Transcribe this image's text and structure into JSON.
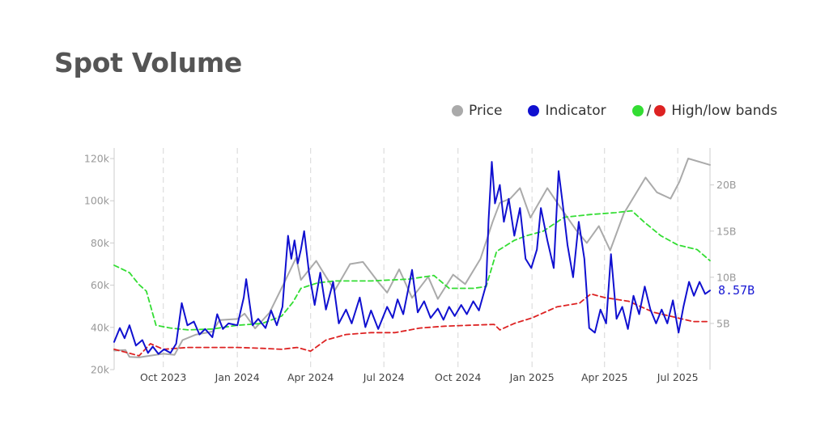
{
  "title": "Spot Volume",
  "legend": {
    "price_label": "Price",
    "indicator_label": "Indicator",
    "bands_label": "High/low bands",
    "bands_sep": "/"
  },
  "colors": {
    "price": "#aaaaaa",
    "indicator": "#1010d0",
    "high_band": "#33dd33",
    "low_band": "#dd2222",
    "grid": "#dddddd",
    "axis": "#cccccc"
  },
  "chart_data": {
    "type": "line",
    "x_range": [
      "2023-08-01",
      "2025-08-10"
    ],
    "x_ticks": [
      {
        "date": "2023-10-01",
        "label": "Oct 2023"
      },
      {
        "date": "2024-01-01",
        "label": "Jan 2024"
      },
      {
        "date": "2024-04-01",
        "label": "Apr 2024"
      },
      {
        "date": "2024-07-01",
        "label": "Jul 2024"
      },
      {
        "date": "2024-10-01",
        "label": "Oct 2024"
      },
      {
        "date": "2025-01-01",
        "label": "Jan 2025"
      },
      {
        "date": "2025-04-01",
        "label": "Apr 2025"
      },
      {
        "date": "2025-07-01",
        "label": "Jul 2025"
      }
    ],
    "y_left": {
      "range": [
        20000,
        125000
      ],
      "ticks": [
        20000,
        40000,
        60000,
        80000,
        100000,
        120000
      ],
      "tick_labels": [
        "20k",
        "40k",
        "60k",
        "80k",
        "100k",
        "120k"
      ]
    },
    "y_right": {
      "range": [
        0,
        24
      ],
      "ticks": [
        5,
        10,
        15,
        20
      ],
      "tick_labels": [
        "5B",
        "10B",
        "15B",
        "20B"
      ]
    },
    "last_value_label": "8.57B",
    "series": [
      {
        "name": "Price",
        "axis": "left",
        "points": [
          [
            "2023-08-01",
            29000
          ],
          [
            "2023-08-15",
            29300
          ],
          [
            "2023-08-20",
            26000
          ],
          [
            "2023-09-01",
            25800
          ],
          [
            "2023-09-15",
            26600
          ],
          [
            "2023-10-01",
            27500
          ],
          [
            "2023-10-15",
            27000
          ],
          [
            "2023-10-25",
            34000
          ],
          [
            "2023-11-10",
            36500
          ],
          [
            "2023-12-01",
            38000
          ],
          [
            "2023-12-10",
            43500
          ],
          [
            "2024-01-01",
            44000
          ],
          [
            "2024-01-10",
            46500
          ],
          [
            "2024-01-23",
            39500
          ],
          [
            "2024-02-10",
            47000
          ],
          [
            "2024-02-28",
            61000
          ],
          [
            "2024-03-14",
            73000
          ],
          [
            "2024-03-20",
            62500
          ],
          [
            "2024-04-08",
            71500
          ],
          [
            "2024-04-20",
            64000
          ],
          [
            "2024-05-01",
            57500
          ],
          [
            "2024-05-20",
            70000
          ],
          [
            "2024-06-05",
            71000
          ],
          [
            "2024-06-25",
            61000
          ],
          [
            "2024-07-05",
            56500
          ],
          [
            "2024-07-20",
            67500
          ],
          [
            "2024-08-05",
            54000
          ],
          [
            "2024-08-25",
            64000
          ],
          [
            "2024-09-06",
            53500
          ],
          [
            "2024-09-25",
            65000
          ],
          [
            "2024-10-10",
            60500
          ],
          [
            "2024-10-29",
            72500
          ],
          [
            "2024-11-13",
            90000
          ],
          [
            "2024-11-22",
            99000
          ],
          [
            "2024-12-05",
            101000
          ],
          [
            "2024-12-17",
            106000
          ],
          [
            "2024-12-30",
            92000
          ],
          [
            "2025-01-20",
            106000
          ],
          [
            "2025-02-05",
            97000
          ],
          [
            "2025-02-25",
            86000
          ],
          [
            "2025-03-10",
            80000
          ],
          [
            "2025-03-25",
            88000
          ],
          [
            "2025-04-08",
            76500
          ],
          [
            "2025-04-25",
            94000
          ],
          [
            "2025-05-22",
            111000
          ],
          [
            "2025-06-05",
            104000
          ],
          [
            "2025-06-22",
            101000
          ],
          [
            "2025-07-03",
            109000
          ],
          [
            "2025-07-14",
            120000
          ],
          [
            "2025-08-10",
            117000
          ]
        ]
      },
      {
        "name": "Indicator",
        "axis": "right",
        "points": [
          [
            "2023-08-01",
            3.0
          ],
          [
            "2023-08-08",
            4.5
          ],
          [
            "2023-08-14",
            3.4
          ],
          [
            "2023-08-20",
            4.8
          ],
          [
            "2023-08-28",
            2.6
          ],
          [
            "2023-09-05",
            3.2
          ],
          [
            "2023-09-12",
            1.8
          ],
          [
            "2023-09-18",
            2.5
          ],
          [
            "2023-09-25",
            1.7
          ],
          [
            "2023-10-02",
            2.2
          ],
          [
            "2023-10-10",
            1.8
          ],
          [
            "2023-10-17",
            2.8
          ],
          [
            "2023-10-24",
            7.2
          ],
          [
            "2023-10-31",
            4.8
          ],
          [
            "2023-11-08",
            5.2
          ],
          [
            "2023-11-15",
            3.8
          ],
          [
            "2023-11-22",
            4.4
          ],
          [
            "2023-12-01",
            3.5
          ],
          [
            "2023-12-07",
            6.0
          ],
          [
            "2023-12-14",
            4.4
          ],
          [
            "2023-12-21",
            5.0
          ],
          [
            "2024-01-01",
            4.8
          ],
          [
            "2024-01-09",
            7.8
          ],
          [
            "2024-01-12",
            9.8
          ],
          [
            "2024-01-20",
            4.8
          ],
          [
            "2024-01-27",
            5.5
          ],
          [
            "2024-02-05",
            4.5
          ],
          [
            "2024-02-12",
            6.4
          ],
          [
            "2024-02-19",
            4.8
          ],
          [
            "2024-02-26",
            6.8
          ],
          [
            "2024-03-04",
            14.5
          ],
          [
            "2024-03-08",
            12.0
          ],
          [
            "2024-03-12",
            14.0
          ],
          [
            "2024-03-16",
            11.5
          ],
          [
            "2024-03-20",
            13.0
          ],
          [
            "2024-03-24",
            15.0
          ],
          [
            "2024-03-30",
            10.5
          ],
          [
            "2024-04-06",
            7.0
          ],
          [
            "2024-04-13",
            10.5
          ],
          [
            "2024-04-20",
            6.5
          ],
          [
            "2024-04-29",
            9.5
          ],
          [
            "2024-05-06",
            5.0
          ],
          [
            "2024-05-15",
            6.5
          ],
          [
            "2024-05-22",
            5.0
          ],
          [
            "2024-06-01",
            7.8
          ],
          [
            "2024-06-08",
            4.6
          ],
          [
            "2024-06-15",
            6.4
          ],
          [
            "2024-06-24",
            4.4
          ],
          [
            "2024-07-05",
            6.8
          ],
          [
            "2024-07-12",
            5.6
          ],
          [
            "2024-07-18",
            7.6
          ],
          [
            "2024-07-25",
            6.0
          ],
          [
            "2024-08-05",
            10.8
          ],
          [
            "2024-08-12",
            6.2
          ],
          [
            "2024-08-20",
            7.4
          ],
          [
            "2024-08-28",
            5.6
          ],
          [
            "2024-09-06",
            6.6
          ],
          [
            "2024-09-13",
            5.4
          ],
          [
            "2024-09-20",
            6.8
          ],
          [
            "2024-09-27",
            5.8
          ],
          [
            "2024-10-05",
            7.0
          ],
          [
            "2024-10-12",
            6.0
          ],
          [
            "2024-10-20",
            7.4
          ],
          [
            "2024-10-27",
            6.4
          ],
          [
            "2024-11-05",
            9.2
          ],
          [
            "2024-11-08",
            16.2
          ],
          [
            "2024-11-12",
            22.5
          ],
          [
            "2024-11-16",
            18.0
          ],
          [
            "2024-11-22",
            20.0
          ],
          [
            "2024-11-27",
            16.0
          ],
          [
            "2024-12-03",
            18.5
          ],
          [
            "2024-12-10",
            14.5
          ],
          [
            "2024-12-17",
            17.5
          ],
          [
            "2024-12-24",
            12.0
          ],
          [
            "2024-12-31",
            11.0
          ],
          [
            "2025-01-07",
            13.0
          ],
          [
            "2025-01-12",
            17.5
          ],
          [
            "2025-01-20",
            14.0
          ],
          [
            "2025-01-28",
            11.0
          ],
          [
            "2025-02-03",
            21.5
          ],
          [
            "2025-02-08",
            18.0
          ],
          [
            "2025-02-14",
            13.5
          ],
          [
            "2025-02-21",
            10.0
          ],
          [
            "2025-02-28",
            16.0
          ],
          [
            "2025-03-07",
            12.0
          ],
          [
            "2025-03-13",
            4.5
          ],
          [
            "2025-03-20",
            4.0
          ],
          [
            "2025-03-27",
            6.5
          ],
          [
            "2025-04-03",
            5.0
          ],
          [
            "2025-04-09",
            12.5
          ],
          [
            "2025-04-16",
            5.5
          ],
          [
            "2025-04-23",
            6.8
          ],
          [
            "2025-04-30",
            4.4
          ],
          [
            "2025-05-07",
            8.0
          ],
          [
            "2025-05-14",
            6.0
          ],
          [
            "2025-05-21",
            9.0
          ],
          [
            "2025-05-28",
            6.5
          ],
          [
            "2025-06-04",
            5.0
          ],
          [
            "2025-06-11",
            6.5
          ],
          [
            "2025-06-18",
            5.0
          ],
          [
            "2025-06-25",
            7.5
          ],
          [
            "2025-07-02",
            4.0
          ],
          [
            "2025-07-08",
            6.8
          ],
          [
            "2025-07-15",
            9.5
          ],
          [
            "2025-07-21",
            8.0
          ],
          [
            "2025-07-28",
            9.5
          ],
          [
            "2025-08-04",
            8.2
          ],
          [
            "2025-08-10",
            8.57
          ]
        ]
      },
      {
        "name": "High band",
        "axis": "right",
        "points": [
          [
            "2023-08-01",
            11.3
          ],
          [
            "2023-08-20",
            10.5
          ],
          [
            "2023-09-01",
            9.2
          ],
          [
            "2023-09-10",
            8.5
          ],
          [
            "2023-09-22",
            4.8
          ],
          [
            "2023-10-10",
            4.5
          ],
          [
            "2023-11-01",
            4.3
          ],
          [
            "2023-12-01",
            4.4
          ],
          [
            "2024-01-01",
            4.8
          ],
          [
            "2024-02-01",
            5.0
          ],
          [
            "2024-02-25",
            5.8
          ],
          [
            "2024-03-10",
            7.3
          ],
          [
            "2024-03-20",
            8.8
          ],
          [
            "2024-04-10",
            9.4
          ],
          [
            "2024-05-01",
            9.6
          ],
          [
            "2024-06-15",
            9.6
          ],
          [
            "2024-08-01",
            9.8
          ],
          [
            "2024-09-01",
            10.2
          ],
          [
            "2024-09-20",
            8.8
          ],
          [
            "2024-10-20",
            8.8
          ],
          [
            "2024-11-05",
            9.0
          ],
          [
            "2024-11-18",
            12.8
          ],
          [
            "2024-12-10",
            14.0
          ],
          [
            "2024-12-25",
            14.5
          ],
          [
            "2025-01-15",
            15.0
          ],
          [
            "2025-02-10",
            16.5
          ],
          [
            "2025-03-15",
            16.8
          ],
          [
            "2025-04-15",
            17.0
          ],
          [
            "2025-05-05",
            17.2
          ],
          [
            "2025-05-20",
            16.0
          ],
          [
            "2025-06-10",
            14.5
          ],
          [
            "2025-07-01",
            13.5
          ],
          [
            "2025-07-25",
            13.0
          ],
          [
            "2025-08-10",
            11.8
          ]
        ]
      },
      {
        "name": "Low band",
        "axis": "right",
        "points": [
          [
            "2023-08-01",
            2.2
          ],
          [
            "2023-09-01",
            1.5
          ],
          [
            "2023-09-15",
            2.8
          ],
          [
            "2023-10-01",
            2.2
          ],
          [
            "2023-11-01",
            2.4
          ],
          [
            "2023-12-01",
            2.4
          ],
          [
            "2024-01-01",
            2.4
          ],
          [
            "2024-02-01",
            2.3
          ],
          [
            "2024-02-25",
            2.2
          ],
          [
            "2024-03-15",
            2.4
          ],
          [
            "2024-04-01",
            2.0
          ],
          [
            "2024-04-20",
            3.2
          ],
          [
            "2024-05-15",
            3.8
          ],
          [
            "2024-06-15",
            4.0
          ],
          [
            "2024-07-15",
            4.0
          ],
          [
            "2024-08-15",
            4.5
          ],
          [
            "2024-09-15",
            4.7
          ],
          [
            "2024-10-15",
            4.8
          ],
          [
            "2024-11-15",
            4.9
          ],
          [
            "2024-11-22",
            4.3
          ],
          [
            "2024-12-10",
            5.0
          ],
          [
            "2025-01-01",
            5.6
          ],
          [
            "2025-02-01",
            6.8
          ],
          [
            "2025-03-01",
            7.2
          ],
          [
            "2025-03-15",
            8.2
          ],
          [
            "2025-04-01",
            7.8
          ],
          [
            "2025-05-01",
            7.4
          ],
          [
            "2025-06-01",
            6.2
          ],
          [
            "2025-07-01",
            5.6
          ],
          [
            "2025-07-20",
            5.2
          ],
          [
            "2025-08-10",
            5.2
          ]
        ]
      }
    ]
  }
}
